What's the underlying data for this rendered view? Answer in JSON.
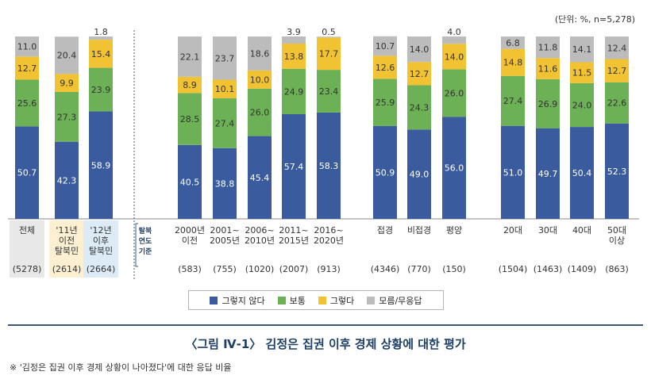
{
  "unit_note": "(단위: %, n=5,278)",
  "legend": [
    {
      "label": "그렇지 않다",
      "color": "#3a5c9e"
    },
    {
      "label": "보통",
      "color": "#6db157"
    },
    {
      "label": "그렇다",
      "color": "#f1c232"
    },
    {
      "label": "모름/무응답",
      "color": "#bcbcbc"
    }
  ],
  "group_label": {
    "lines": [
      "탈북",
      "연도",
      "기준"
    ]
  },
  "figure_title": "〈그림 Ⅳ-1〉 김정은 집권 이후 경제 상황에 대한 평가",
  "footnote": "※ '김정은 집권 이후 경제 상황이 나아졌다'에 대한 응답 비율",
  "chart_data": {
    "type": "stacked_bar",
    "ylim": [
      0,
      100
    ],
    "series": [
      {
        "name": "그렇지 않다",
        "color": "#3a5c9e"
      },
      {
        "name": "보통",
        "color": "#6db157"
      },
      {
        "name": "그렇다",
        "color": "#f1c232"
      },
      {
        "name": "모름/무응답",
        "color": "#bcbcbc"
      }
    ],
    "categories": [
      {
        "label": [
          "전체"
        ],
        "n": "(5278)",
        "values": [
          50.7,
          25.6,
          12.7,
          11.0
        ],
        "bg": "#e8e8e8"
      },
      {
        "label": [
          "'11년",
          "이전",
          "탈북민"
        ],
        "n": "(2614)",
        "values": [
          42.3,
          27.3,
          9.9,
          20.4
        ],
        "bg": "#fdf0d2"
      },
      {
        "label": [
          "'12년",
          "이후",
          "탈북민"
        ],
        "n": "(2664)",
        "values": [
          58.9,
          23.9,
          15.4,
          1.8
        ],
        "bg": "#dcebf5"
      },
      {
        "label": [
          "2000년",
          "이전"
        ],
        "n": "(583)",
        "values": [
          40.5,
          28.5,
          8.9,
          22.1
        ]
      },
      {
        "label": [
          "2001~",
          "2005년"
        ],
        "n": "(755)",
        "values": [
          38.8,
          27.4,
          10.1,
          23.7
        ]
      },
      {
        "label": [
          "2006~",
          "2010년"
        ],
        "n": "(1020)",
        "values": [
          45.4,
          26.0,
          10.0,
          18.6
        ]
      },
      {
        "label": [
          "2011~",
          "2015년"
        ],
        "n": "(2007)",
        "values": [
          57.4,
          24.9,
          13.8,
          3.9
        ]
      },
      {
        "label": [
          "2016~",
          "2020년"
        ],
        "n": "(913)",
        "values": [
          58.3,
          23.4,
          17.7,
          0.5
        ]
      },
      {
        "label": [
          "접경"
        ],
        "n": "(4346)",
        "values": [
          50.9,
          25.9,
          12.6,
          10.7
        ]
      },
      {
        "label": [
          "비접경"
        ],
        "n": "(770)",
        "values": [
          49.0,
          24.3,
          12.7,
          14.0
        ]
      },
      {
        "label": [
          "평양"
        ],
        "n": "(150)",
        "values": [
          56.0,
          26.0,
          14.0,
          4.0
        ]
      },
      {
        "label": [
          "20대"
        ],
        "n": "(1504)",
        "values": [
          51.0,
          27.4,
          14.8,
          6.8
        ]
      },
      {
        "label": [
          "30대"
        ],
        "n": "(1463)",
        "values": [
          49.7,
          26.9,
          11.6,
          11.8
        ]
      },
      {
        "label": [
          "40대"
        ],
        "n": "(1409)",
        "values": [
          50.4,
          24.0,
          11.5,
          14.1
        ]
      },
      {
        "label": [
          "50대",
          "이상"
        ],
        "n": "(863)",
        "values": [
          52.3,
          22.6,
          12.7,
          12.4
        ]
      }
    ]
  }
}
